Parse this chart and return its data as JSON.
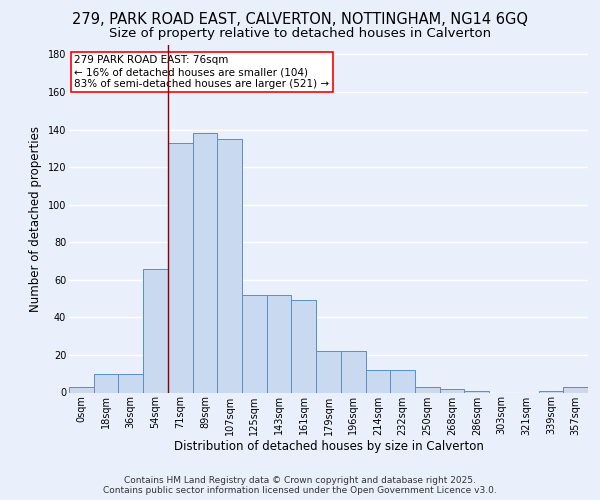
{
  "title_line1": "279, PARK ROAD EAST, CALVERTON, NOTTINGHAM, NG14 6GQ",
  "title_line2": "Size of property relative to detached houses in Calverton",
  "xlabel": "Distribution of detached houses by size in Calverton",
  "ylabel": "Number of detached properties",
  "bar_labels": [
    "0sqm",
    "18sqm",
    "36sqm",
    "54sqm",
    "71sqm",
    "89sqm",
    "107sqm",
    "125sqm",
    "143sqm",
    "161sqm",
    "179sqm",
    "196sqm",
    "214sqm",
    "232sqm",
    "250sqm",
    "268sqm",
    "286sqm",
    "303sqm",
    "321sqm",
    "339sqm",
    "357sqm"
  ],
  "bar_values": [
    3,
    10,
    10,
    66,
    133,
    138,
    135,
    52,
    52,
    49,
    22,
    22,
    12,
    12,
    3,
    2,
    1,
    0,
    0,
    1,
    3
  ],
  "bar_color": "#c9d9f0",
  "bar_edge_color": "#5b8ec4",
  "bar_width": 1.0,
  "vline_x": 3.5,
  "vline_color": "#8b0000",
  "annotation_text": "279 PARK ROAD EAST: 76sqm\n← 16% of detached houses are smaller (104)\n83% of semi-detached houses are larger (521) →",
  "annotation_box_color": "white",
  "annotation_edge_color": "red",
  "ylim": [
    0,
    185
  ],
  "yticks": [
    0,
    20,
    40,
    60,
    80,
    100,
    120,
    140,
    160,
    180
  ],
  "bg_color": "#eaf0fb",
  "plot_bg_color": "#eaf0fb",
  "grid_color": "white",
  "footnote": "Contains HM Land Registry data © Crown copyright and database right 2025.\nContains public sector information licensed under the Open Government Licence v3.0.",
  "title_fontsize": 10.5,
  "subtitle_fontsize": 9.5,
  "xlabel_fontsize": 8.5,
  "ylabel_fontsize": 8.5,
  "tick_fontsize": 7,
  "annotation_fontsize": 7.5,
  "footnote_fontsize": 6.5
}
